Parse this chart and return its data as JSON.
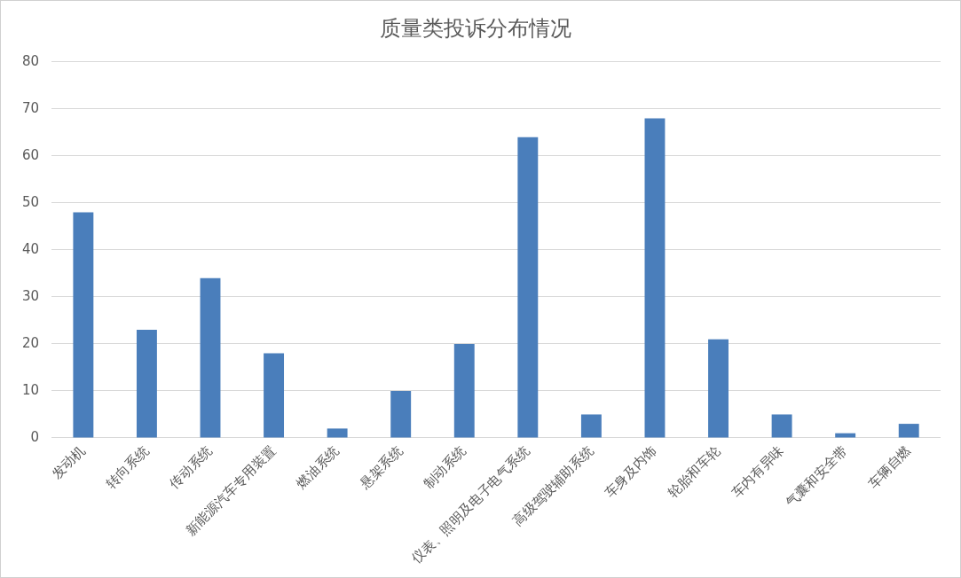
{
  "chart_data": {
    "type": "bar",
    "title": "质量类投诉分布情况",
    "categories": [
      "发动机",
      "转向系统",
      "传动系统",
      "新能源汽车专用装置",
      "燃油系统",
      "悬架系统",
      "制动系统",
      "仪表、照明及电子电气系统",
      "高级驾驶辅助系统",
      "车身及内饰",
      "轮胎和车轮",
      "车内有异味",
      "气囊和安全带",
      "车辆自燃"
    ],
    "values": [
      48,
      23,
      34,
      18,
      2,
      10,
      20,
      64,
      5,
      68,
      21,
      5,
      1,
      3
    ],
    "color": "#4a7ebb",
    "ylim": [
      0,
      80
    ],
    "yticks": [
      0,
      10,
      20,
      30,
      40,
      50,
      60,
      70,
      80
    ],
    "grid": "y",
    "legend": false
  }
}
